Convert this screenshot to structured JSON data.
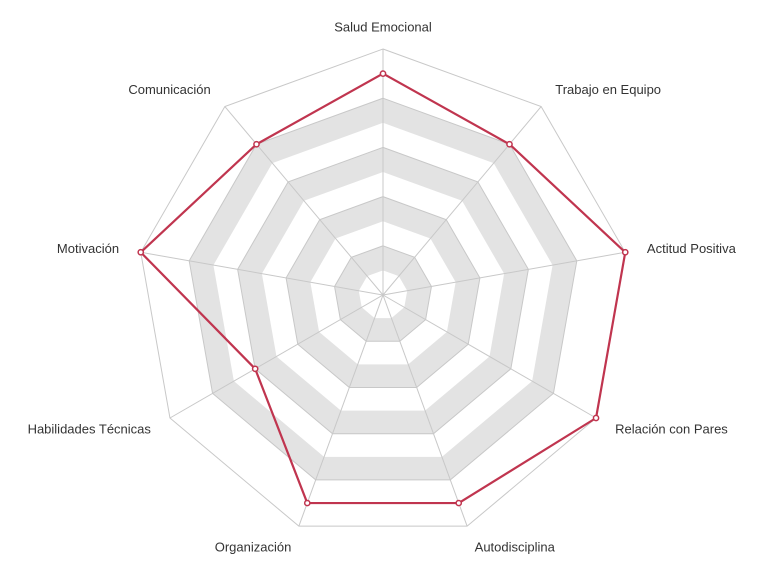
{
  "chart_data": {
    "type": "radar",
    "axes": [
      "Salud Emocional",
      "Trabajo en Equipo",
      "Actitud Positiva",
      "Relación con Pares",
      "Autodisciplina",
      "Organización",
      "Habilidades Técnicas",
      "Motivación",
      "Comunicación"
    ],
    "rlim": [
      0,
      10
    ],
    "rings": 10,
    "alternating_band_fill": true,
    "series": [
      {
        "values": [
          9,
          8,
          10,
          10,
          9,
          9,
          6,
          10,
          8
        ]
      }
    ],
    "colors": {
      "series_line": "#c0354f",
      "marker_fill": "#ffffff",
      "band_fill": "#e3e3e3",
      "grid_line": "#c8c8c8",
      "label_text": "#333333"
    }
  }
}
